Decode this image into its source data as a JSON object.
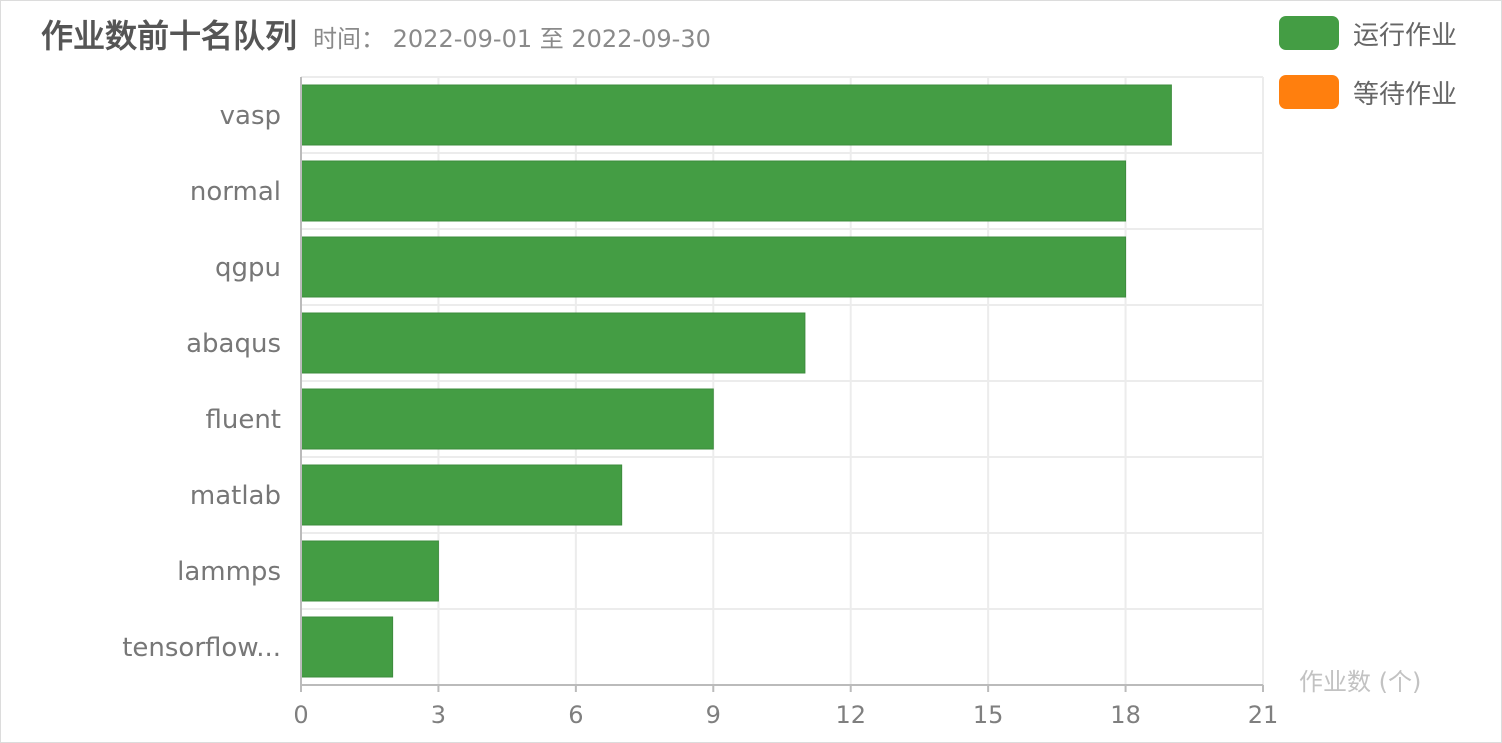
{
  "chart_data": {
    "type": "bar",
    "orientation": "horizontal",
    "title": "作业数前十名队列",
    "subtitle": "时间： 2022-09-01 至 2022-09-30",
    "xlabel": "作业数 (个)",
    "ylabel": "",
    "categories": [
      "vasp",
      "normal",
      "qgpu",
      "abaqus",
      "fluent",
      "matlab",
      "lammps",
      "tensorflow..."
    ],
    "series": [
      {
        "name": "运行作业",
        "color": "#449d44",
        "values": [
          19,
          18,
          18,
          11,
          9,
          7,
          3,
          2
        ]
      },
      {
        "name": "等待作业",
        "color": "#ff7f0e",
        "values": [
          0,
          0,
          0,
          0,
          0,
          0,
          0,
          0
        ]
      }
    ],
    "xlim": [
      0,
      21
    ],
    "xticks": [
      0,
      3,
      6,
      9,
      12,
      15,
      18,
      21
    ],
    "grid": true,
    "legend_position": "top-right"
  }
}
